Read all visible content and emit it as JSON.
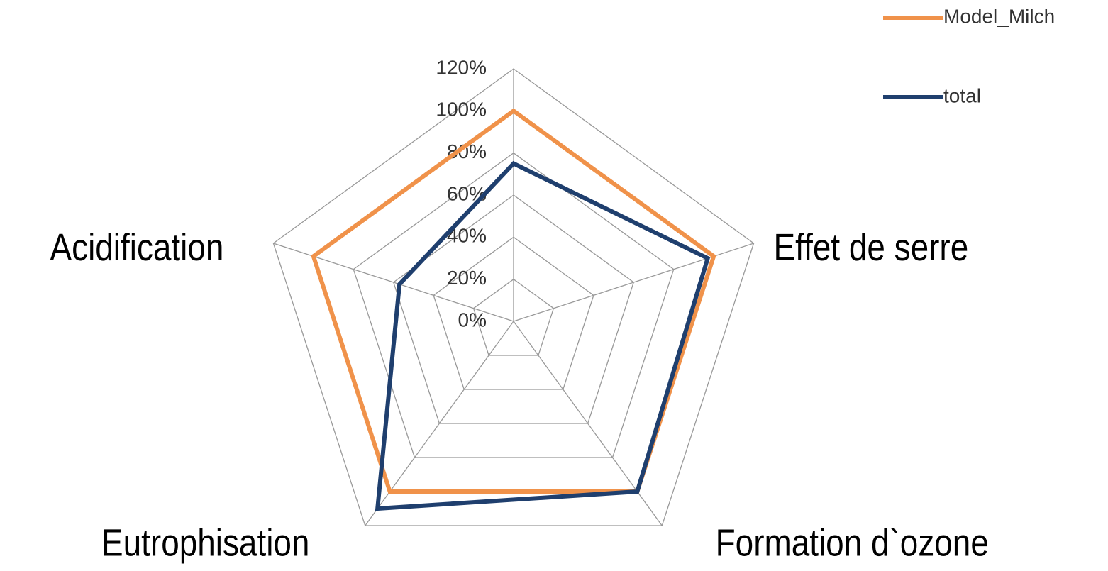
{
  "chart_data": {
    "type": "radar",
    "categories": [
      null,
      "Effet de serre",
      "Formation d`ozone",
      "Eutrophisation",
      "Acidification"
    ],
    "series": [
      {
        "name": "Model_Milch",
        "color": "#f0924a",
        "values": [
          100,
          100,
          100,
          100,
          100
        ]
      },
      {
        "name": "total",
        "color": "#1f3f6e",
        "values": [
          75,
          97,
          100,
          110,
          57
        ]
      }
    ],
    "rlim": [
      0,
      120
    ],
    "rticks": [
      {
        "value": 0,
        "label": "0%"
      },
      {
        "value": 20,
        "label": "20%"
      },
      {
        "value": 40,
        "label": "40%"
      },
      {
        "value": 60,
        "label": "60%"
      },
      {
        "value": 80,
        "label": "80%"
      },
      {
        "value": 100,
        "label": "100%"
      },
      {
        "value": 120,
        "label": "120%"
      }
    ],
    "grid": true
  }
}
